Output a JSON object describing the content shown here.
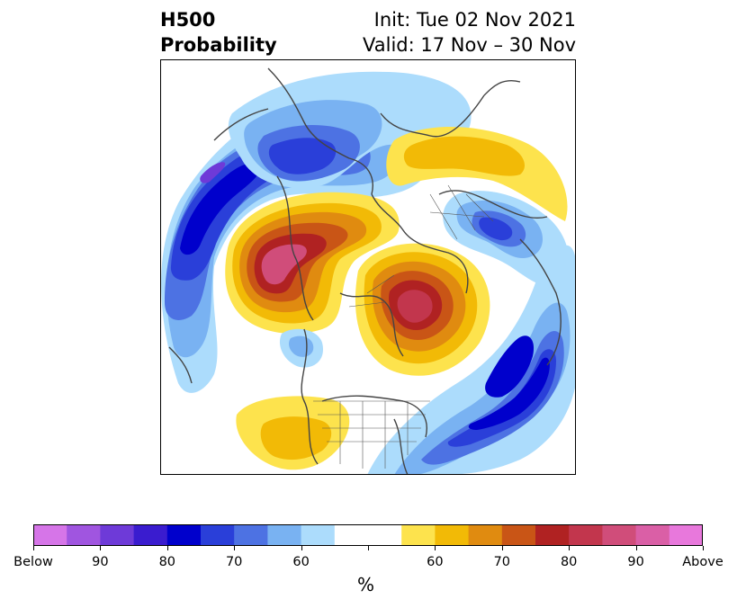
{
  "header": {
    "title_line1": "H500",
    "title_line2": "Probability",
    "init": "Init: Tue 02 Nov 2021",
    "valid": "Valid: 17 Nov – 30 Nov"
  },
  "colorbar": {
    "unit": "%",
    "colors": [
      "#d675e8",
      "#a055e0",
      "#6e3ad8",
      "#3a1ccf",
      "#0000cc",
      "#2a3fd9",
      "#4d72e3",
      "#79b2f2",
      "#acdcfc",
      "#ffffff",
      "#ffffff",
      "#fde34d",
      "#f2ba06",
      "#e08b10",
      "#c95516",
      "#b02222",
      "#c2364d",
      "#d04d7a",
      "#da5fa6",
      "#e878dc"
    ],
    "tick_labels": [
      "Below",
      "90",
      "80",
      "70",
      "60",
      "",
      "60",
      "70",
      "80",
      "90",
      "Above"
    ]
  },
  "map": {
    "projection": "north polar stereographic",
    "positive_anomaly_colors": [
      "#fde34d",
      "#f2ba06",
      "#e08b10",
      "#c95516",
      "#b02222",
      "#c2364d",
      "#d04d7a"
    ],
    "negative_anomaly_colors": [
      "#acdcfc",
      "#79b2f2",
      "#4d72e3",
      "#2a3fd9",
      "#0000cc",
      "#6e3ad8"
    ]
  }
}
